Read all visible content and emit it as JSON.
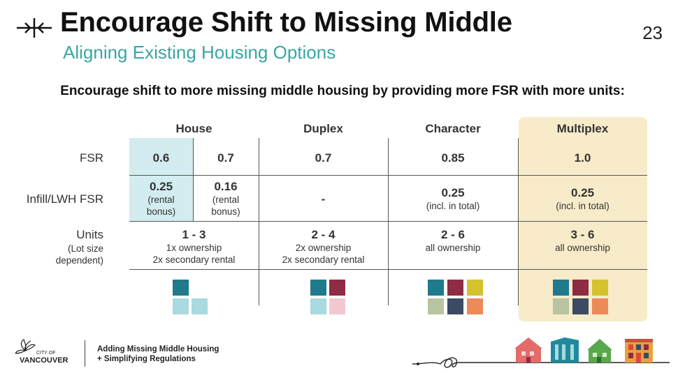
{
  "header": {
    "title": "Encourage Shift to Missing Middle",
    "subtitle": "Aligning Existing Housing Options",
    "page_number": "23",
    "lead": "Encourage shift to more missing middle housing by providing more FSR with more units:"
  },
  "table": {
    "columns": [
      "House",
      "Duplex",
      "Character",
      "Multiplex"
    ],
    "row_labels": {
      "fsr": "FSR",
      "infill": "Infill/LWH FSR",
      "units": "Units",
      "units_sub_1": "(Lot size",
      "units_sub_2": "dependent)"
    },
    "fsr": {
      "house_a": "0.6",
      "house_b": "0.7",
      "duplex": "0.7",
      "character": "0.85",
      "multiplex": "1.0"
    },
    "infill": {
      "house_a_val": "0.25",
      "house_a_note_1": "(rental",
      "house_a_note_2": "bonus)",
      "house_b_val": "0.16",
      "house_b_note_1": "(rental",
      "house_b_note_2": "bonus)",
      "duplex": "-",
      "character_val": "0.25",
      "character_note": "(incl. in total)",
      "multiplex_val": "0.25",
      "multiplex_note": "(incl. in total)"
    },
    "units": {
      "house_val": "1 - 3",
      "house_note_1": "1x ownership",
      "house_note_2": "2x secondary rental",
      "duplex_val": "2 - 4",
      "duplex_note_1": "2x ownership",
      "duplex_note_2": "2x secondary rental",
      "character_val": "2 - 6",
      "character_note": "all ownership",
      "multiplex_val": "3 - 6",
      "multiplex_note": "all ownership"
    },
    "colors": {
      "teal": "#1f7a8c",
      "teal_light": "#a8dadf",
      "maroon": "#8e2c44",
      "pink_light": "#f2c9d3",
      "mustard": "#d4c22e",
      "sage": "#b9c4a1",
      "navy": "#3d4a63",
      "orange": "#ec8a5a",
      "highlight_blue": "#d3ecef",
      "highlight_yellow": "#f7ebc9"
    }
  },
  "footer": {
    "org_line_1": "CITY OF",
    "org_line_2": "VANCOUVER",
    "project_line_1": "Adding Missing Middle Housing",
    "project_line_2": "+ Simplifying Regulations"
  }
}
